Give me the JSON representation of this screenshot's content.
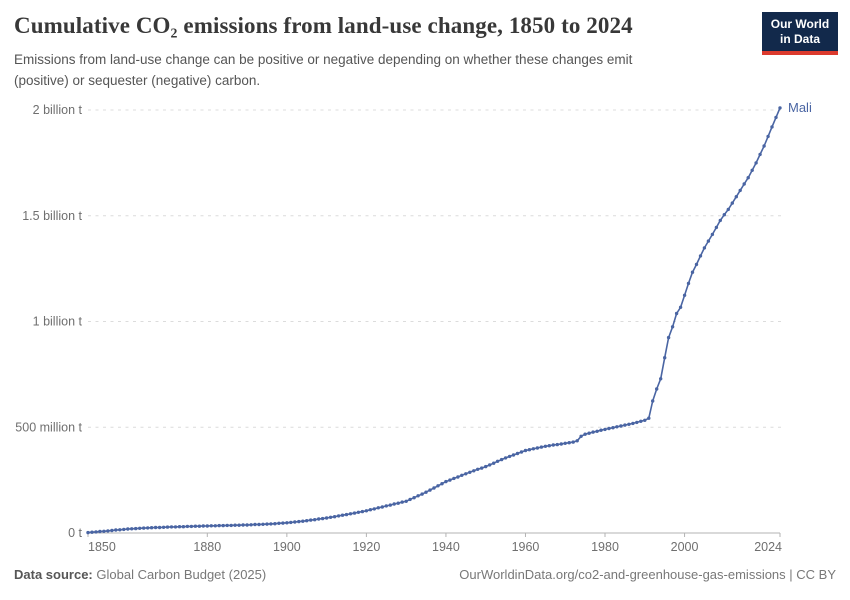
{
  "header": {
    "title": "Cumulative CO₂ emissions from land-use change, 1850 to 2024",
    "subtitle_line1": "Emissions from land-use change can be positive or negative depending on whether these changes emit",
    "subtitle_line2": "(positive) or sequester (negative) carbon."
  },
  "logo": {
    "line1": "Our World",
    "line2": "in Data"
  },
  "footer": {
    "source_label": "Data source:",
    "source_value": "Global Carbon Budget (2025)",
    "link_text": "OurWorldinData.org/co2-and-greenhouse-gas-emissions | CC BY"
  },
  "colors": {
    "line_blue": "#4a65a3",
    "logo_navy": "#12294b",
    "logo_red": "#dc3a2d",
    "gridline": "#dcdcdc",
    "axis": "#b3b3b3",
    "tick_text": "#6f6f6f"
  },
  "chart_data": {
    "type": "line",
    "title": "Cumulative CO₂ emissions from land-use change, 1850 to 2024",
    "entity": "Mali",
    "unit": "million tonnes of CO₂",
    "grid": "dashed-horizontal",
    "legend_position": "end-of-line-label",
    "xlim": [
      1850,
      2024
    ],
    "ylim": [
      0,
      2000
    ],
    "xticks": [
      1850,
      1880,
      1900,
      1920,
      1940,
      1960,
      1980,
      2000,
      2024
    ],
    "yticks": [
      {
        "value": 0,
        "label": "0 t"
      },
      {
        "value": 500,
        "label": "500 million t"
      },
      {
        "value": 1000,
        "label": "1 billion t"
      },
      {
        "value": 1500,
        "label": "1.5 billion t"
      },
      {
        "value": 2000,
        "label": "2 billion t"
      }
    ],
    "x_start": 1850,
    "series": [
      {
        "name": "Mali",
        "color": "#4a65a3",
        "values": [
          2,
          4,
          5,
          7,
          8,
          10,
          12,
          14,
          15,
          17,
          19,
          20,
          21,
          22,
          23,
          24,
          25,
          26,
          26,
          27,
          28,
          29,
          29,
          30,
          30,
          31,
          31,
          32,
          32,
          33,
          33,
          34,
          34,
          35,
          35,
          36,
          36,
          37,
          37,
          38,
          38,
          39,
          40,
          40,
          41,
          42,
          43,
          44,
          46,
          47,
          48,
          50,
          52,
          54,
          56,
          58,
          61,
          63,
          66,
          68,
          71,
          74,
          77,
          81,
          84,
          87,
          91,
          94,
          98,
          101,
          105,
          110,
          114,
          119,
          123,
          128,
          132,
          137,
          141,
          146,
          150,
          159,
          167,
          176,
          184,
          193,
          203,
          213,
          223,
          233,
          243,
          250,
          258,
          265,
          273,
          280,
          287,
          294,
          301,
          307,
          314,
          322,
          330,
          339,
          347,
          355,
          362,
          369,
          376,
          383,
          390,
          394,
          398,
          402,
          406,
          410,
          413,
          416,
          418,
          421,
          424,
          427,
          430,
          436,
          457,
          467,
          472,
          477,
          481,
          486,
          490,
          494,
          498,
          502,
          506,
          510,
          514,
          518,
          523,
          528,
          533,
          543,
          624,
          681,
          729,
          829,
          924,
          975,
          1038,
          1067,
          1124,
          1180,
          1233,
          1270,
          1310,
          1348,
          1380,
          1412,
          1445,
          1478,
          1505,
          1530,
          1560,
          1590,
          1620,
          1650,
          1680,
          1715,
          1750,
          1790,
          1830,
          1875,
          1920,
          1965,
          2010
        ]
      }
    ]
  }
}
